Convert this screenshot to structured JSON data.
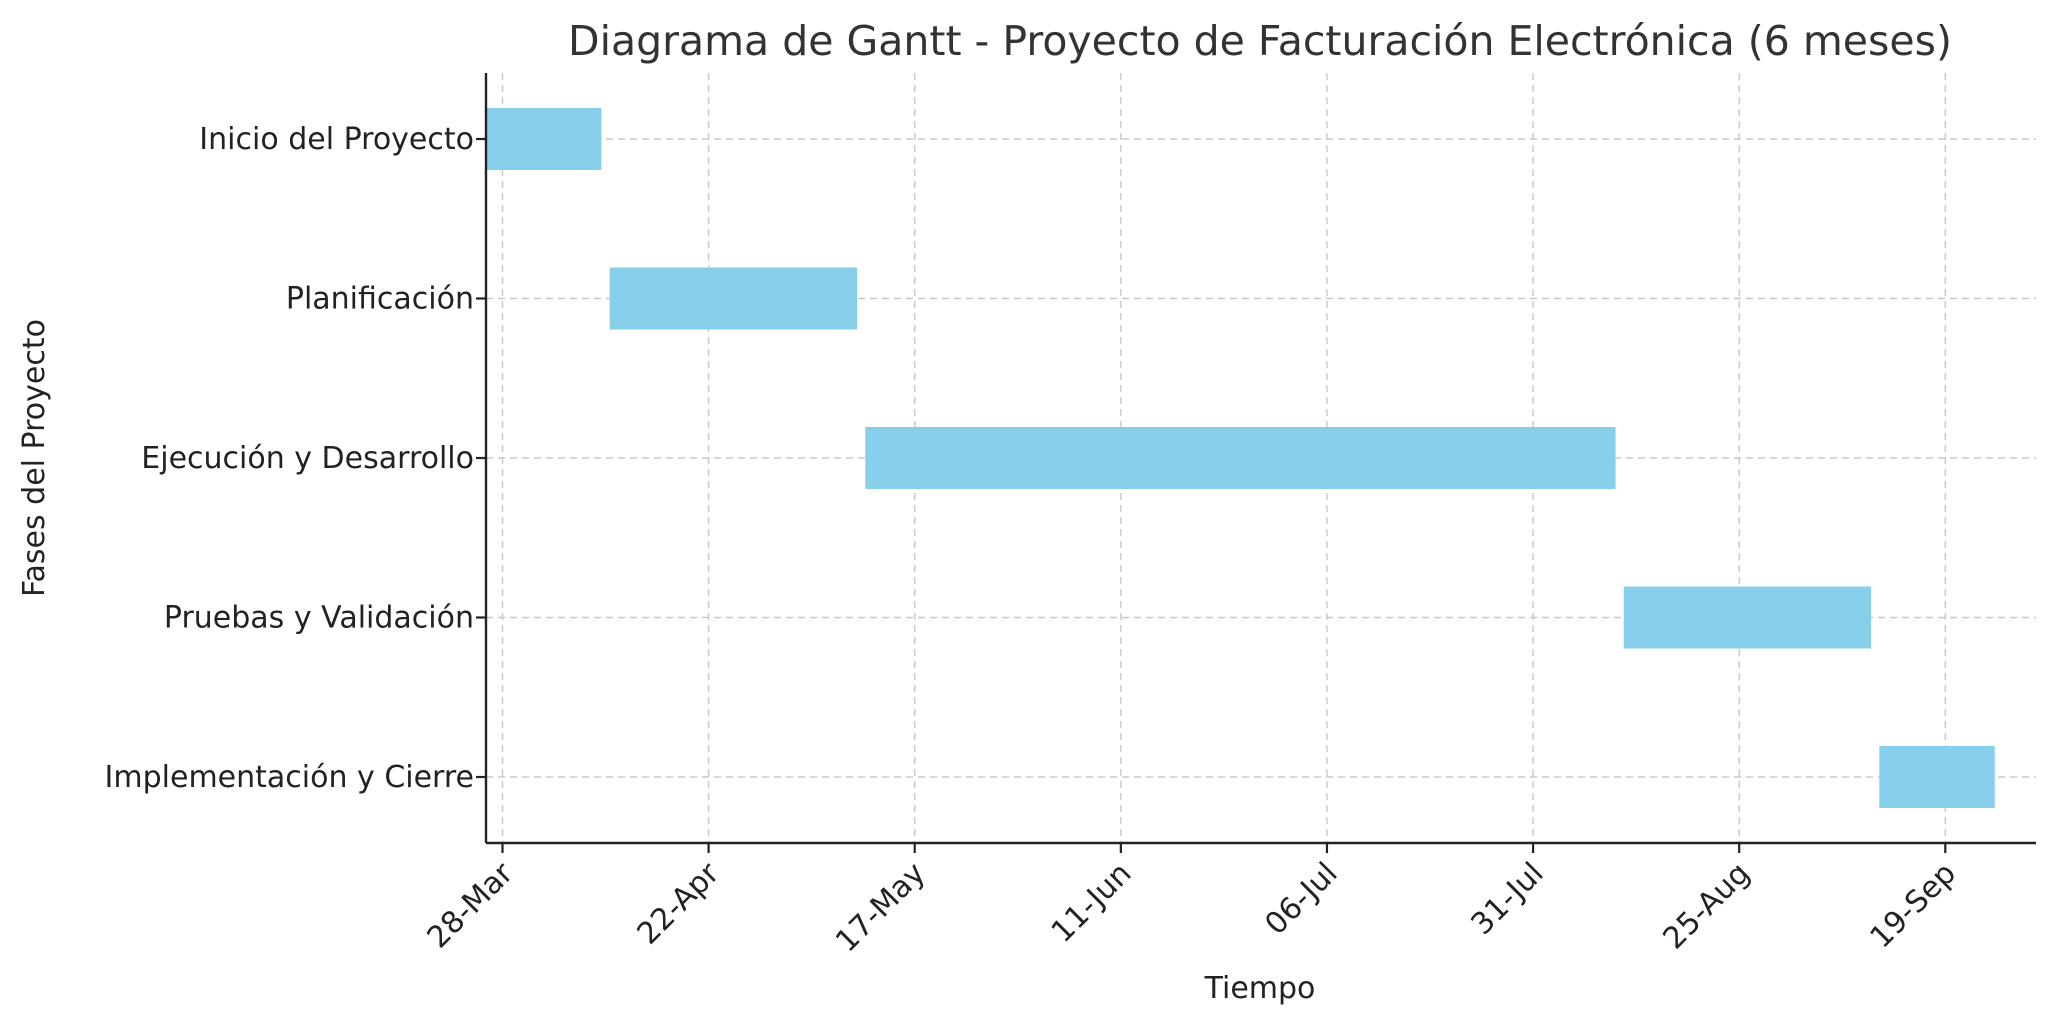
{
  "chart_data": {
    "type": "bar",
    "orientation": "horizontal-gantt",
    "title": "Diagrama de Gantt - Proyecto de Facturación Electrónica (6 meses)",
    "xlabel": "Tiempo",
    "ylabel": "Fases del Proyecto",
    "grid": true,
    "bar_color": "#87CEEB",
    "xlim": [
      "2024-03-26",
      "2024-09-30"
    ],
    "x_ticks": [
      {
        "date": "2024-03-28",
        "label": "28-Mar"
      },
      {
        "date": "2024-04-22",
        "label": "22-Apr"
      },
      {
        "date": "2024-05-17",
        "label": "17-May"
      },
      {
        "date": "2024-06-11",
        "label": "11-Jun"
      },
      {
        "date": "2024-07-06",
        "label": "06-Jul"
      },
      {
        "date": "2024-07-31",
        "label": "31-Jul"
      },
      {
        "date": "2024-08-25",
        "label": "25-Aug"
      },
      {
        "date": "2024-09-19",
        "label": "19-Sep"
      }
    ],
    "tasks": [
      {
        "name": "Inicio del Proyecto",
        "start": "2024-03-26",
        "end": "2024-04-09"
      },
      {
        "name": "Planificación",
        "start": "2024-04-10",
        "end": "2024-05-10"
      },
      {
        "name": "Ejecución y Desarrollo",
        "start": "2024-05-11",
        "end": "2024-08-10"
      },
      {
        "name": "Pruebas y Validación",
        "start": "2024-08-11",
        "end": "2024-09-10"
      },
      {
        "name": "Implementación y Cierre",
        "start": "2024-09-11",
        "end": "2024-09-25"
      }
    ]
  }
}
